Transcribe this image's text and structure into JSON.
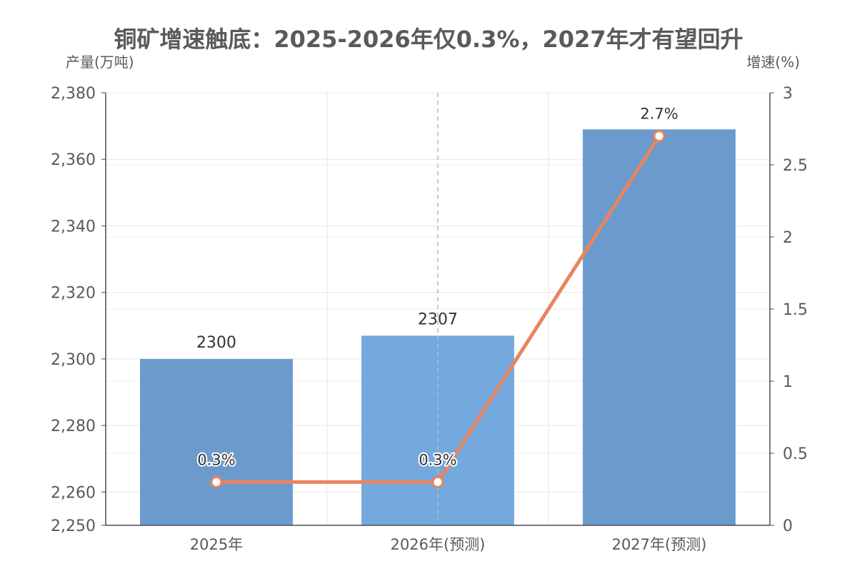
{
  "chart_data": {
    "type": "bar",
    "title": "铜矿增速触底：2025-2026年仅0.3%，2027年才有望回升",
    "categories": [
      "2025年",
      "2026年(预测)",
      "2027年(预测)"
    ],
    "y_left": {
      "label": "产量(万吨)",
      "range": [
        2250,
        2380
      ],
      "ticks": [
        {
          "value": 2250,
          "label": "2,250"
        },
        {
          "value": 2260,
          "label": "2,260"
        },
        {
          "value": 2280,
          "label": "2,280"
        },
        {
          "value": 2300,
          "label": "2,300"
        },
        {
          "value": 2320,
          "label": "2,320"
        },
        {
          "value": 2340,
          "label": "2,340"
        },
        {
          "value": 2360,
          "label": "2,360"
        },
        {
          "value": 2380,
          "label": "2,380"
        }
      ]
    },
    "y_right": {
      "label": "增速(%)",
      "range": [
        0,
        3
      ],
      "ticks": [
        {
          "value": 0,
          "label": "0"
        },
        {
          "value": 0.5,
          "label": "0.5"
        },
        {
          "value": 1,
          "label": "1"
        },
        {
          "value": 1.5,
          "label": "1.5"
        },
        {
          "value": 2,
          "label": "2"
        },
        {
          "value": 2.5,
          "label": "2.5"
        },
        {
          "value": 3,
          "label": "3"
        }
      ]
    },
    "series": [
      {
        "type": "bar",
        "axis": "left",
        "values": [
          2300,
          2307,
          2369
        ],
        "labels": [
          "2300",
          "2307",
          ""
        ],
        "colors": [
          "#6b9bcc",
          "#74a9de",
          "#6b9bcc"
        ]
      },
      {
        "type": "line",
        "axis": "right",
        "values": [
          0.3,
          0.3,
          2.7
        ],
        "labels": [
          "0.3%",
          "0.3%",
          "2.7%"
        ],
        "color": "#e8845f"
      }
    ],
    "grid": true,
    "highlight_divider_after": 1
  }
}
